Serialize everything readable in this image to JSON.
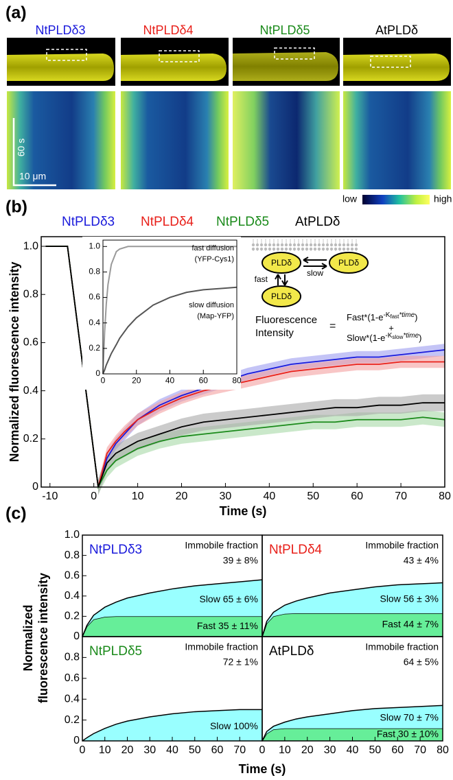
{
  "panel_labels": [
    "(a)",
    "(b)",
    "(c)"
  ],
  "images": {
    "labels": [
      {
        "text": "NtPLDδ3",
        "color": "#1a1adb"
      },
      {
        "text": "NtPLDδ4",
        "color": "#e8201a"
      },
      {
        "text": "NtPLDδ5",
        "color": "#1a8a1a"
      },
      {
        "text": "AtPLDδ",
        "color": "#000000"
      }
    ],
    "scale_time": "60 s",
    "scale_length": "10 μm",
    "colorbar_low": "low",
    "colorbar_high": "high"
  },
  "model": {
    "protein": "PLDδ",
    "fast": "fast",
    "slow": "slow",
    "lhs": [
      "Fluorescence",
      "Intensity"
    ],
    "equals": "=",
    "plus": "+",
    "rhs1": [
      "Fast*(1-e",
      "-K",
      "fast",
      "*time",
      ")"
    ],
    "rhs2": [
      "Slow*(1-e",
      "-K",
      "slow",
      "*time",
      ")"
    ]
  },
  "chart_data": [
    {
      "type": "line",
      "xlabel": "Time (s)",
      "ylabel": "Normalized fluorescence intensity",
      "x": [
        -11,
        -9,
        -7,
        -6,
        1,
        3,
        5,
        7,
        10,
        15,
        20,
        25,
        30,
        35,
        40,
        45,
        50,
        55,
        60,
        65,
        70,
        75,
        80
      ],
      "series": [
        {
          "name": "NtPLDδ3",
          "color": "#1a1adb",
          "band_color": "#9c9cf0",
          "error": 0.025,
          "values": [
            1,
            1,
            1,
            1,
            0,
            0.12,
            0.18,
            0.22,
            0.28,
            0.34,
            0.38,
            0.41,
            0.44,
            0.47,
            0.49,
            0.51,
            0.52,
            0.53,
            0.54,
            0.54,
            0.55,
            0.56,
            0.57
          ]
        },
        {
          "name": "NtPLDδ4",
          "color": "#e8201a",
          "band_color": "#f4a0a0",
          "error": 0.025,
          "values": [
            1,
            1,
            1,
            1,
            0,
            0.14,
            0.19,
            0.23,
            0.28,
            0.33,
            0.37,
            0.4,
            0.42,
            0.44,
            0.46,
            0.48,
            0.49,
            0.5,
            0.51,
            0.51,
            0.52,
            0.52,
            0.52
          ]
        },
        {
          "name": "NtPLDδ5",
          "color": "#1a8a1a",
          "band_color": "#a6d8a6",
          "error": 0.03,
          "values": [
            1,
            1,
            1,
            1,
            0,
            0.07,
            0.11,
            0.13,
            0.16,
            0.19,
            0.21,
            0.22,
            0.23,
            0.24,
            0.25,
            0.26,
            0.27,
            0.27,
            0.28,
            0.28,
            0.28,
            0.29,
            0.28
          ]
        },
        {
          "name": "AtPLDδ",
          "color": "#000000",
          "band_color": "#a8a8a8",
          "error": 0.035,
          "values": [
            1,
            1,
            1,
            1,
            0,
            0.1,
            0.14,
            0.16,
            0.19,
            0.22,
            0.25,
            0.27,
            0.28,
            0.29,
            0.3,
            0.31,
            0.32,
            0.33,
            0.33,
            0.34,
            0.34,
            0.35,
            0.35
          ]
        }
      ],
      "xlim": [
        -12,
        80
      ],
      "xticks": [
        -10,
        0,
        10,
        20,
        30,
        40,
        50,
        60,
        70,
        80
      ],
      "ylim": [
        0,
        1.04
      ],
      "yticks": [
        0,
        0.2,
        0.4,
        0.6,
        0.8,
        {
          "value": 1,
          "label": "1.0"
        }
      ]
    },
    {
      "type": "line",
      "x": [
        0,
        1,
        2,
        3,
        5,
        8,
        10,
        15,
        20,
        30,
        40,
        50,
        60,
        70,
        80
      ],
      "series": [
        {
          "name": "fast diffusion",
          "note": "(YFP-Cys1)",
          "color": "#999999",
          "values": [
            0,
            0.33,
            0.55,
            0.7,
            0.86,
            0.96,
            0.98,
            1,
            1,
            1,
            1,
            1,
            1,
            1,
            1
          ]
        },
        {
          "name": "slow diffusion",
          "note": "(Map-YFP)",
          "color": "#555555",
          "values": [
            0,
            0.03,
            0.07,
            0.1,
            0.16,
            0.23,
            0.28,
            0.37,
            0.44,
            0.54,
            0.6,
            0.64,
            0.66,
            0.67,
            0.68
          ]
        }
      ],
      "xlim": [
        0,
        80
      ],
      "xticks": [
        0,
        20,
        40,
        60,
        80
      ],
      "ylim": [
        0,
        1.05
      ],
      "yticks": [
        0,
        0.2,
        0.4,
        0.6,
        0.8,
        {
          "value": 1,
          "label": "1.0"
        }
      ]
    },
    {
      "type": "area",
      "title": "NtPLDδ3",
      "title_color": "#1a1adb",
      "annotation": [
        "Immobile fraction",
        "39 ± 8%"
      ],
      "ylabel": [
        "Normalized",
        "fluorescence intensity"
      ],
      "x": [
        0,
        2,
        5,
        10,
        15,
        20,
        30,
        40,
        50,
        60,
        70,
        80
      ],
      "series": [
        {
          "name": "Fast 35 ± 11%",
          "color": "#66ee99",
          "values": [
            0,
            0.1,
            0.17,
            0.195,
            0.2,
            0.2,
            0.2,
            0.2,
            0.2,
            0.2,
            0.2,
            0.2
          ]
        },
        {
          "name": "Slow 65 ± 6%",
          "color": "#99ffff",
          "values": [
            0,
            0.01,
            0.04,
            0.095,
            0.14,
            0.18,
            0.23,
            0.27,
            0.3,
            0.32,
            0.34,
            0.36
          ]
        }
      ],
      "xlim": [
        0,
        80
      ],
      "ylim": [
        0,
        1
      ],
      "yticks": [
        0,
        0.2,
        0.4,
        0.6,
        0.8,
        {
          "value": 1,
          "label": "1.0"
        }
      ]
    },
    {
      "type": "area",
      "title": "NtPLDδ4",
      "title_color": "#e8201a",
      "annotation": [
        "Immobile fraction",
        "43 ± 4%"
      ],
      "x": [
        0,
        2,
        5,
        10,
        15,
        20,
        30,
        40,
        50,
        60,
        70,
        80
      ],
      "series": [
        {
          "name": "Fast 44 ± 7%",
          "color": "#66ee99",
          "values": [
            0,
            0.13,
            0.2,
            0.225,
            0.23,
            0.23,
            0.23,
            0.23,
            0.23,
            0.23,
            0.23,
            0.23
          ]
        },
        {
          "name": "Slow 56 ± 3%",
          "color": "#99ffff",
          "values": [
            0,
            0.02,
            0.04,
            0.085,
            0.12,
            0.15,
            0.2,
            0.23,
            0.26,
            0.28,
            0.29,
            0.3
          ]
        }
      ],
      "xlim": [
        0,
        80
      ],
      "ylim": [
        0,
        1
      ]
    },
    {
      "type": "area",
      "title": "NtPLDδ5",
      "title_color": "#1a8a1a",
      "annotation": [
        "Immobile fraction",
        "72 ± 1%"
      ],
      "xlabel": "Time (s)",
      "x": [
        0,
        2,
        5,
        10,
        15,
        20,
        30,
        40,
        50,
        60,
        70,
        80
      ],
      "series": [
        {
          "name": "Slow 100%",
          "color": "#99ffff",
          "values": [
            0,
            0.03,
            0.07,
            0.12,
            0.16,
            0.19,
            0.23,
            0.26,
            0.28,
            0.29,
            0.3,
            0.3
          ]
        }
      ],
      "xlim": [
        0,
        80
      ],
      "xticks": [
        0,
        10,
        20,
        30,
        40,
        50,
        60,
        70
      ],
      "ylim": [
        0,
        1
      ],
      "yticks": [
        0,
        0.2,
        0.4,
        0.6,
        0.8
      ]
    },
    {
      "type": "area",
      "title": "AtPLDδ",
      "title_color": "#000000",
      "annotation": [
        "Immobile fraction",
        "64 ± 5%"
      ],
      "x": [
        0,
        2,
        5,
        10,
        15,
        20,
        30,
        40,
        50,
        60,
        70,
        80
      ],
      "series": [
        {
          "name": "Fast 30 ± 10%",
          "color": "#66ee99",
          "values": [
            0,
            0.07,
            0.11,
            0.12,
            0.12,
            0.12,
            0.12,
            0.12,
            0.12,
            0.12,
            0.12,
            0.12
          ]
        },
        {
          "name": "Slow 70 ± 7%",
          "color": "#99ffff",
          "values": [
            0,
            0.02,
            0.03,
            0.06,
            0.09,
            0.11,
            0.14,
            0.17,
            0.19,
            0.2,
            0.21,
            0.22
          ]
        }
      ],
      "xlim": [
        0,
        80
      ],
      "xticks": [
        0,
        10,
        20,
        30,
        40,
        50,
        60,
        70,
        80
      ],
      "ylim": [
        0,
        1
      ]
    }
  ]
}
